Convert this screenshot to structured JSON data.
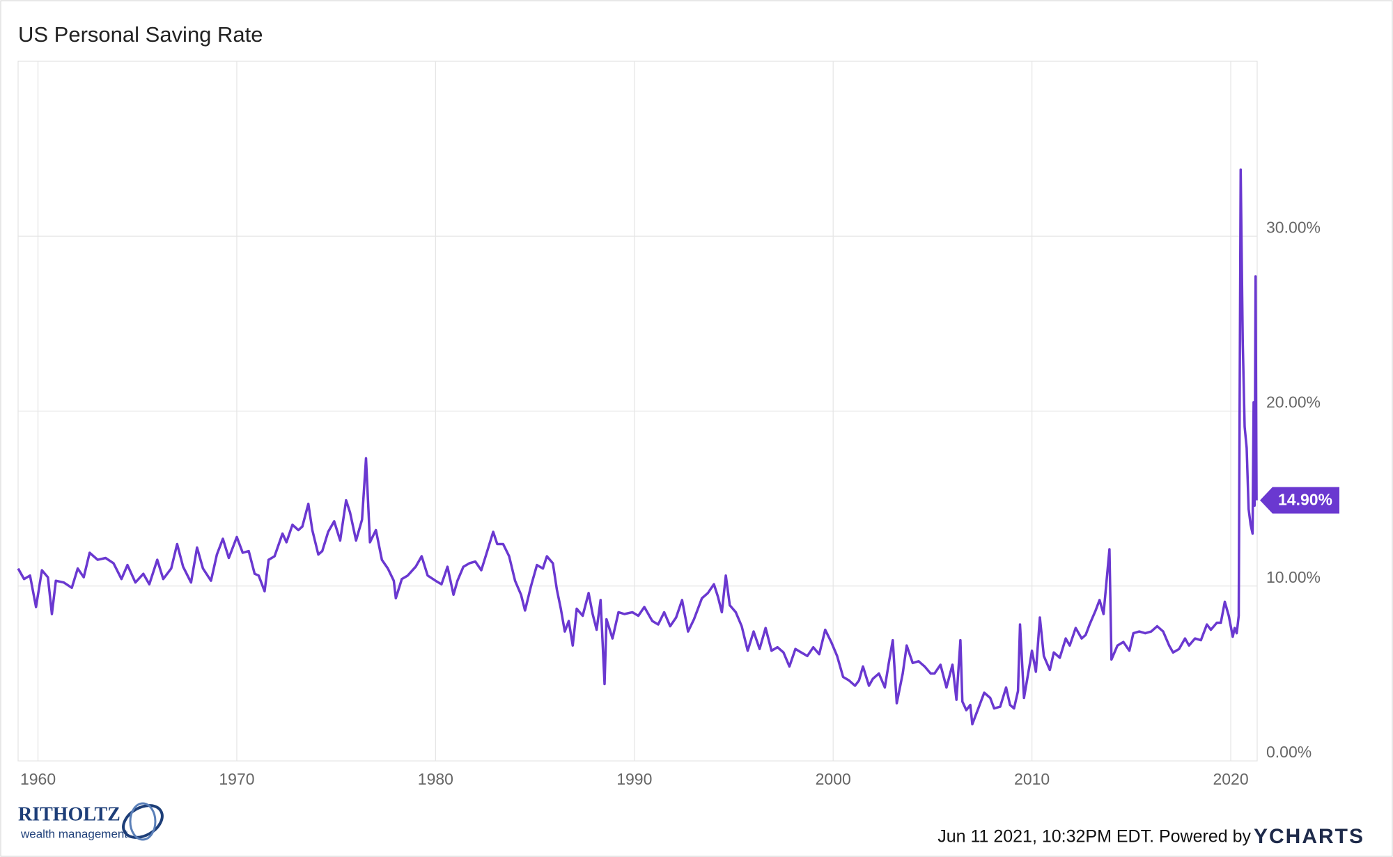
{
  "chart_data": {
    "type": "line",
    "title": "US Personal Saving Rate",
    "x": [
      1959.0,
      1959.3,
      1959.6,
      1959.9,
      1960.2,
      1960.5,
      1960.7,
      1960.9,
      1961.3,
      1961.7,
      1962.0,
      1962.3,
      1962.6,
      1963.0,
      1963.4,
      1963.8,
      1964.2,
      1964.5,
      1964.9,
      1965.3,
      1965.6,
      1966.0,
      1966.3,
      1966.7,
      1967.0,
      1967.3,
      1967.7,
      1968.0,
      1968.3,
      1968.7,
      1969.0,
      1969.3,
      1969.6,
      1970.0,
      1970.3,
      1970.6,
      1970.9,
      1971.1,
      1971.4,
      1971.6,
      1971.9,
      1972.3,
      1972.5,
      1972.8,
      1973.1,
      1973.3,
      1973.6,
      1973.8,
      1974.1,
      1974.3,
      1974.6,
      1974.9,
      1975.2,
      1975.5,
      1975.7,
      1976.0,
      1976.3,
      1976.5,
      1976.7,
      1977.0,
      1977.3,
      1977.6,
      1977.9,
      1978.0,
      1978.3,
      1978.6,
      1979.0,
      1979.3,
      1979.6,
      1980.0,
      1980.3,
      1980.6,
      1980.9,
      1981.1,
      1981.4,
      1981.7,
      1982.0,
      1982.3,
      1982.6,
      1982.9,
      1983.1,
      1983.4,
      1983.7,
      1984.0,
      1984.3,
      1984.5,
      1984.8,
      1985.1,
      1985.4,
      1985.6,
      1985.9,
      1986.1,
      1986.3,
      1986.5,
      1986.7,
      1986.9,
      1987.1,
      1987.4,
      1987.7,
      1987.9,
      1988.1,
      1988.3,
      1988.5,
      1988.6,
      1988.9,
      1989.2,
      1989.5,
      1989.9,
      1990.2,
      1990.5,
      1990.9,
      1991.2,
      1991.5,
      1991.8,
      1992.1,
      1992.4,
      1992.7,
      1993.0,
      1993.4,
      1993.7,
      1994.0,
      1994.2,
      1994.4,
      1994.6,
      1994.8,
      1995.1,
      1995.4,
      1995.7,
      1996.0,
      1996.3,
      1996.6,
      1996.9,
      1997.2,
      1997.5,
      1997.8,
      1998.1,
      1998.4,
      1998.7,
      1999.0,
      1999.3,
      1999.6,
      1999.9,
      2000.2,
      2000.5,
      2000.8,
      2001.1,
      2001.3,
      2001.5,
      2001.8,
      2002.0,
      2002.3,
      2002.6,
      2002.8,
      2003.0,
      2003.2,
      2003.5,
      2003.7,
      2004.0,
      2004.3,
      2004.6,
      2004.9,
      2005.1,
      2005.4,
      2005.7,
      2006.0,
      2006.2,
      2006.4,
      2006.5,
      2006.7,
      2006.9,
      2007.0,
      2007.3,
      2007.6,
      2007.9,
      2008.1,
      2008.4,
      2008.7,
      2008.9,
      2009.1,
      2009.3,
      2009.4,
      2009.6,
      2009.9,
      2010.0,
      2010.2,
      2010.4,
      2010.6,
      2010.9,
      2011.1,
      2011.4,
      2011.7,
      2011.9,
      2012.2,
      2012.5,
      2012.7,
      2012.9,
      2013.2,
      2013.4,
      2013.6,
      2013.9,
      2014.0,
      2014.3,
      2014.6,
      2014.9,
      2015.1,
      2015.4,
      2015.7,
      2016.0,
      2016.3,
      2016.6,
      2016.9,
      2017.1,
      2017.4,
      2017.7,
      2017.9,
      2018.2,
      2018.5,
      2018.8,
      2019.0,
      2019.3,
      2019.5,
      2019.7,
      2019.9,
      2020.1,
      2020.2,
      2020.3,
      2020.4,
      2020.5,
      2020.6,
      2020.7,
      2020.8,
      2020.9,
      2021.0,
      2021.1,
      2021.15,
      2021.2,
      2021.25,
      2021.3
    ],
    "series": [
      {
        "name": "US Personal Saving Rate",
        "color": "#6a38d0",
        "values": [
          11.0,
          10.4,
          10.6,
          8.8,
          10.9,
          10.5,
          8.4,
          10.3,
          10.2,
          9.9,
          11.0,
          10.5,
          11.9,
          11.5,
          11.6,
          11.3,
          10.4,
          11.2,
          10.2,
          10.7,
          10.1,
          11.5,
          10.4,
          11.0,
          12.4,
          11.1,
          10.2,
          12.2,
          11.0,
          10.3,
          11.8,
          12.7,
          11.6,
          12.8,
          11.9,
          12.0,
          10.7,
          10.6,
          9.7,
          11.5,
          11.7,
          13.0,
          12.5,
          13.5,
          13.2,
          13.4,
          14.7,
          13.2,
          11.8,
          12.0,
          13.1,
          13.7,
          12.6,
          14.9,
          14.2,
          12.6,
          13.8,
          17.3,
          12.5,
          13.2,
          11.5,
          11.0,
          10.3,
          9.3,
          10.4,
          10.6,
          11.1,
          11.7,
          10.6,
          10.3,
          10.1,
          11.1,
          9.5,
          10.3,
          11.1,
          11.3,
          11.4,
          10.9,
          12.0,
          13.1,
          12.4,
          12.4,
          11.7,
          10.3,
          9.5,
          8.6,
          10.0,
          11.2,
          11.0,
          11.7,
          11.3,
          9.8,
          8.7,
          7.4,
          8.0,
          6.6,
          8.7,
          8.3,
          9.6,
          8.4,
          7.5,
          9.2,
          4.4,
          8.1,
          7.0,
          8.5,
          8.4,
          8.5,
          8.3,
          8.8,
          8.0,
          7.8,
          8.5,
          7.7,
          8.2,
          9.2,
          7.4,
          8.1,
          9.3,
          9.6,
          10.1,
          9.4,
          8.5,
          10.6,
          8.9,
          8.5,
          7.7,
          6.3,
          7.4,
          6.4,
          7.6,
          6.3,
          6.5,
          6.2,
          5.4,
          6.4,
          6.2,
          6.0,
          6.5,
          6.1,
          7.5,
          6.8,
          6.0,
          4.8,
          4.6,
          4.3,
          4.6,
          5.4,
          4.3,
          4.7,
          5.0,
          4.2,
          5.6,
          6.9,
          3.3,
          5.0,
          6.6,
          5.6,
          5.7,
          5.4,
          5.0,
          5.0,
          5.5,
          4.2,
          5.5,
          3.5,
          6.9,
          3.4,
          2.9,
          3.2,
          2.1,
          3.0,
          3.9,
          3.6,
          3.0,
          3.1,
          4.2,
          3.2,
          3.0,
          4.0,
          7.8,
          3.6,
          5.6,
          6.3,
          5.1,
          8.2,
          6.0,
          5.2,
          6.2,
          5.9,
          7.0,
          6.6,
          7.6,
          7.0,
          7.2,
          7.8,
          8.6,
          9.2,
          8.4,
          12.1,
          5.8,
          6.6,
          6.8,
          6.3,
          7.3,
          7.4,
          7.3,
          7.4,
          7.7,
          7.4,
          6.6,
          6.2,
          6.4,
          7.0,
          6.6,
          7.0,
          6.9,
          7.8,
          7.5,
          7.9,
          7.9,
          9.1,
          8.3,
          7.1,
          7.6,
          7.3,
          8.3,
          33.8,
          24.1,
          19.1,
          17.9,
          14.4,
          13.5,
          13.0,
          20.5,
          14.6,
          27.7,
          14.9
        ]
      }
    ],
    "last_value": {
      "value": 14.9,
      "label": "14.90%"
    },
    "xlim": [
      1959.0,
      2021.33
    ],
    "xticks": [
      1960,
      1970,
      1980,
      1990,
      2000,
      2010,
      2020
    ],
    "ylim": [
      0,
      40
    ],
    "yticks": [
      {
        "value": 0,
        "label": "0.00%"
      },
      {
        "value": 10,
        "label": "10.00%"
      },
      {
        "value": 20,
        "label": "20.00%"
      },
      {
        "value": 30,
        "label": "30.00%"
      }
    ],
    "grid": true
  },
  "footer": {
    "timestamp": "Jun 11 2021, 10:32PM EDT. Powered by",
    "brand": "YCHARTS",
    "logo_name": "RITHOLTZ",
    "logo_sub": "wealth management"
  }
}
